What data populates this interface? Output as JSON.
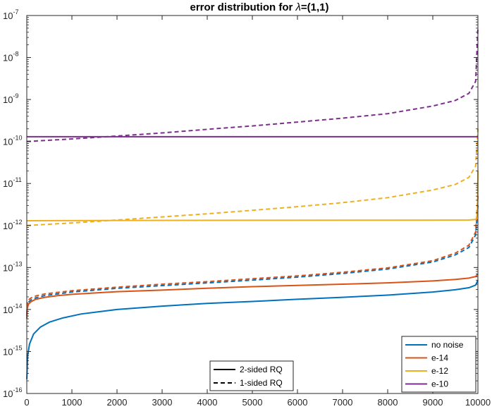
{
  "chart_data": {
    "type": "line",
    "title_prefix": "error distribution for ",
    "title_lambda": "λ",
    "title_suffix": "=(1,1)",
    "xlabel": "",
    "ylabel": "",
    "xlim": [
      0,
      10000
    ],
    "ylim": [
      1e-16,
      1e-07
    ],
    "yscale": "log",
    "grid": false,
    "x_ticks": [
      0,
      1000,
      2000,
      3000,
      4000,
      5000,
      6000,
      7000,
      8000,
      9000,
      10000
    ],
    "y_ticks": [
      {
        "base": "10",
        "exp": "-16",
        "value": 1e-16
      },
      {
        "base": "10",
        "exp": "-15",
        "value": 1e-15
      },
      {
        "base": "10",
        "exp": "-14",
        "value": 1e-14
      },
      {
        "base": "10",
        "exp": "-13",
        "value": 1e-13
      },
      {
        "base": "10",
        "exp": "-12",
        "value": 1e-12
      },
      {
        "base": "10",
        "exp": "-11",
        "value": 1e-11
      },
      {
        "base": "10",
        "exp": "-10",
        "value": 1e-10
      },
      {
        "base": "10",
        "exp": "-9",
        "value": 1e-09
      },
      {
        "base": "10",
        "exp": "-8",
        "value": 1e-08
      },
      {
        "base": "10",
        "exp": "-7",
        "value": 1e-07
      }
    ],
    "colors": {
      "no noise": "#0072bd",
      "e-14": "#d95319",
      "e-12": "#edb120",
      "e-10": "#7e2f8e"
    },
    "series": [
      {
        "name": "no noise",
        "style": "solid",
        "color": "#0072bd",
        "x": [
          1,
          20,
          60,
          150,
          300,
          500,
          800,
          1200,
          2000,
          3000,
          4000,
          5000,
          6000,
          7000,
          8000,
          9000,
          9500,
          9800,
          9950,
          10000
        ],
        "y": [
          2.2e-16,
          8e-16,
          1.5e-15,
          2.6e-15,
          3.8e-15,
          5e-15,
          6.3e-15,
          7.8e-15,
          1e-14,
          1.2e-14,
          1.4e-14,
          1.55e-14,
          1.75e-14,
          1.95e-14,
          2.2e-14,
          2.6e-14,
          2.95e-14,
          3.3e-14,
          3.8e-14,
          5e-14
        ]
      },
      {
        "name": "e-14",
        "style": "solid",
        "color": "#d95319",
        "x": [
          1,
          10,
          40,
          100,
          200,
          400,
          700,
          1000,
          2000,
          3000,
          4000,
          5000,
          6000,
          7000,
          8000,
          9000,
          9500,
          9800,
          9950,
          10000
        ],
        "y": [
          6e-15,
          1.05e-14,
          1.35e-14,
          1.55e-14,
          1.75e-14,
          1.95e-14,
          2.15e-14,
          2.3e-14,
          2.65e-14,
          2.9e-14,
          3.2e-14,
          3.5e-14,
          3.75e-14,
          4e-14,
          4.3e-14,
          4.8e-14,
          5.2e-14,
          5.6e-14,
          6.1e-14,
          7e-14
        ]
      },
      {
        "name": "e-12",
        "style": "solid",
        "color": "#edb120",
        "x": [
          0,
          2000,
          5000,
          8000,
          9800,
          9960,
          9990,
          10000
        ],
        "y": [
          1.3e-12,
          1.32e-12,
          1.33e-12,
          1.34e-12,
          1.35e-12,
          1.4e-12,
          2e-12,
          2e-11
        ]
      },
      {
        "name": "e-10",
        "style": "solid",
        "color": "#7e2f8e",
        "x": [
          0,
          2000,
          5000,
          8000,
          10000
        ],
        "y": [
          1.3e-10,
          1.3e-10,
          1.3e-10,
          1.3e-10,
          1.3e-10
        ]
      },
      {
        "name": "no noise",
        "style": "dashed",
        "color": "#0072bd",
        "x": [
          1,
          10,
          40,
          100,
          200,
          400,
          1000,
          2000,
          3000,
          4000,
          5000,
          6000,
          7000,
          8000,
          9000,
          9500,
          9800,
          9950,
          10000
        ],
        "y": [
          7e-15,
          1.2e-14,
          1.5e-14,
          1.7e-14,
          1.9e-14,
          2.15e-14,
          2.6e-14,
          3.2e-14,
          3.7e-14,
          4.3e-14,
          5e-14,
          5.9e-14,
          7.2e-14,
          9.2e-14,
          1.35e-13,
          2e-13,
          3e-13,
          6e-13,
          3e-12
        ]
      },
      {
        "name": "e-14",
        "style": "dashed",
        "color": "#d95319",
        "x": [
          1,
          10,
          40,
          100,
          200,
          400,
          1000,
          2000,
          3000,
          4000,
          5000,
          6000,
          7000,
          8000,
          9000,
          9500,
          9800,
          9950,
          10000
        ],
        "y": [
          8e-15,
          1.35e-14,
          1.7e-14,
          1.9e-14,
          2.1e-14,
          2.35e-14,
          2.8e-14,
          3.4e-14,
          4e-14,
          4.6e-14,
          5.4e-14,
          6.3e-14,
          7.7e-14,
          9.8e-14,
          1.45e-13,
          2.2e-13,
          3.4e-13,
          7e-13,
          5e-12
        ]
      },
      {
        "name": "e-12",
        "style": "dashed",
        "color": "#edb120",
        "x": [
          0,
          1000,
          2000,
          3000,
          4000,
          5000,
          6000,
          7000,
          8000,
          9000,
          9500,
          9800,
          9950,
          10000
        ],
        "y": [
          1e-12,
          1.15e-12,
          1.35e-12,
          1.6e-12,
          1.9e-12,
          2.3e-12,
          2.8e-12,
          3.5e-12,
          4.6e-12,
          7e-12,
          9.5e-12,
          1.4e-11,
          2.6e-11,
          2e-10
        ]
      },
      {
        "name": "e-10",
        "style": "dashed",
        "color": "#7e2f8e",
        "x": [
          0,
          1000,
          2000,
          3000,
          4000,
          5000,
          6000,
          7000,
          8000,
          9000,
          9500,
          9800,
          9950,
          10000
        ],
        "y": [
          1e-10,
          1.15e-10,
          1.35e-10,
          1.6e-10,
          1.95e-10,
          2.35e-10,
          2.9e-10,
          3.6e-10,
          4.6e-10,
          7e-10,
          9.5e-10,
          1.4e-09,
          2.7e-09,
          5e-08
        ]
      }
    ],
    "legend_colors": {
      "location": "bottom-right",
      "entries": [
        {
          "label": "no noise",
          "color": "#0072bd"
        },
        {
          "label": "e-14",
          "color": "#d95319"
        },
        {
          "label": "e-12",
          "color": "#edb120"
        },
        {
          "label": "e-10",
          "color": "#7e2f8e"
        }
      ]
    },
    "legend_styles": {
      "location": "bottom-center",
      "entries": [
        {
          "label": "2-sided RQ",
          "style": "solid"
        },
        {
          "label": "1-sided RQ",
          "style": "dashed"
        }
      ]
    }
  }
}
